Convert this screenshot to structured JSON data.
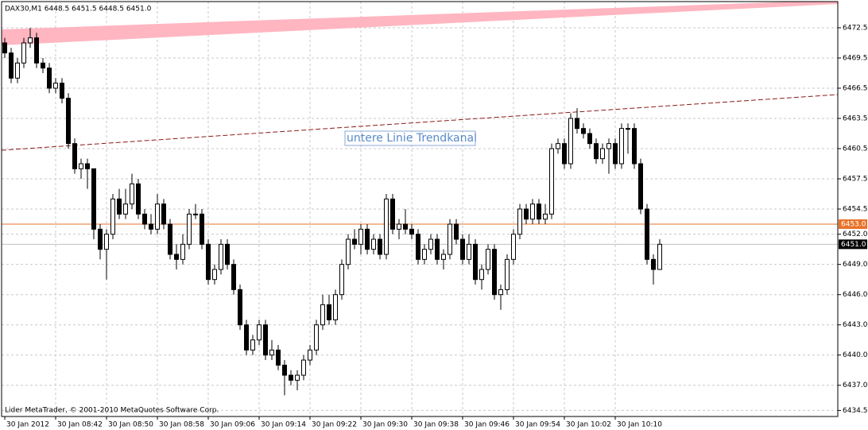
{
  "chart_data": {
    "type": "candlestick",
    "title": "DAX30,M1  6448.5 6451.5 6448.5 6451.0",
    "annotation": "untere Linie Trendkanal",
    "footer": "Lider MetaTrader, © 2001-2010 MetaQuotes Software Corp.",
    "categories": [
      "30 Jan 2012",
      null,
      null,
      null,
      null,
      null,
      null,
      null,
      "30 Jan 08:42",
      null,
      null,
      null,
      null,
      null,
      null,
      null,
      "30 Jan 08:50",
      null,
      null,
      null,
      null,
      null,
      null,
      null,
      "30 Jan 08:58",
      null,
      null,
      null,
      null,
      null,
      null,
      null,
      "30 Jan 09:06",
      null,
      null,
      null,
      null,
      null,
      null,
      null,
      "30 Jan 09:14",
      null,
      null,
      null,
      null,
      null,
      null,
      null,
      "30 Jan 09:22",
      null,
      null,
      null,
      null,
      null,
      null,
      null,
      "30 Jan 09:30",
      null,
      null,
      null,
      null,
      null,
      null,
      null,
      "30 Jan 09:38",
      null,
      null,
      null,
      null,
      null,
      null,
      null,
      "30 Jan 09:46",
      null,
      null,
      null,
      null,
      null,
      null,
      null,
      "30 Jan 09:54",
      null,
      null,
      null,
      null,
      null,
      null,
      null,
      "30 Jan 10:02",
      null,
      null,
      null,
      null,
      null,
      null,
      null,
      "30 Jan 10:10",
      null,
      null,
      null,
      null,
      null,
      null,
      null
    ],
    "open": [
      6471,
      6470,
      6467.5,
      6469,
      6471,
      6471.5,
      6469,
      6468.5,
      6466.5,
      6467,
      6465.5,
      6461,
      6458.5,
      6459,
      6458.5,
      6452.5,
      6450.5,
      6452,
      6455.5,
      6454,
      6455,
      6457,
      6454,
      6453,
      6452.5,
      6455,
      6453,
      6450,
      6449.5,
      6451,
      6454,
      6454,
      6451,
      6447.5,
      6448.5,
      6451,
      6449,
      6446.5,
      6443,
      6440.5,
      6441.5,
      6443,
      6440,
      6440.5,
      6439,
      6438,
      6437.5,
      6438,
      6439.5,
      6440.5,
      6443,
      6445,
      6443.5,
      6446,
      6449,
      6451.5,
      6451,
      6452.5,
      6450.5,
      6451.5,
      6450,
      6455.5,
      6452.5,
      6453,
      6452.5,
      6452,
      6449.5,
      6450.5,
      6451.5,
      6449.5,
      6450,
      6453,
      6451.5,
      6449.5,
      6451,
      6447.5,
      6448.5,
      6450.5,
      6446,
      6446.5,
      6449.5,
      6452,
      6454.5,
      6453.5,
      6455,
      6453.5,
      6454,
      6460.5,
      6461,
      6459,
      6463.5,
      6462.5,
      6462,
      6461,
      6459.5,
      6460.5,
      6461,
      6459,
      6462.5,
      6462.5,
      6459,
      6454.5,
      6449.5,
      6448.5
    ],
    "high": [
      6471.5,
      6470.5,
      6469.5,
      6471.5,
      6472.5,
      6472,
      6469.5,
      6469,
      6467.5,
      6467.5,
      6466,
      6461.5,
      6459.5,
      6459.5,
      6458.5,
      6453,
      6452.5,
      6456,
      6456.5,
      6456.5,
      6458,
      6457.5,
      6454.5,
      6454,
      6456,
      6455.5,
      6453.5,
      6451,
      6452,
      6454.5,
      6455,
      6454.5,
      6451.5,
      6449,
      6451.5,
      6451.5,
      6449.5,
      6447,
      6443.5,
      6442,
      6443.5,
      6443.5,
      6441.5,
      6441,
      6439.5,
      6438.5,
      6438.5,
      6440,
      6441,
      6443.5,
      6446,
      6446,
      6446.5,
      6449.5,
      6452,
      6452.5,
      6453,
      6453,
      6452,
      6452,
      6456,
      6456,
      6453.5,
      6454.5,
      6453,
      6452.5,
      6451,
      6452,
      6452,
      6450.5,
      6453.5,
      6453.5,
      6452,
      6452,
      6451.5,
      6449,
      6451,
      6451,
      6447,
      6450,
      6452.5,
      6455,
      6455,
      6455.5,
      6455.5,
      6455,
      6461,
      6461.5,
      6461.5,
      6464,
      6464.5,
      6463,
      6462.5,
      6461.5,
      6461,
      6461.5,
      6461.5,
      6463,
      6463,
      6463,
      6459.5,
      6455,
      6450,
      6451.5
    ],
    "low": [
      6469.5,
      6467,
      6467,
      6468.5,
      6470.5,
      6468.5,
      6468,
      6466,
      6466,
      6465,
      6460.5,
      6458,
      6457.5,
      6456.5,
      6451.5,
      6449.5,
      6447.5,
      6451.5,
      6453.5,
      6453.5,
      6454.5,
      6453.5,
      6452.5,
      6452,
      6452,
      6452.5,
      6449.5,
      6448.5,
      6449,
      6450.5,
      6453.5,
      6450.5,
      6447,
      6447,
      6448,
      6448.5,
      6446,
      6442.5,
      6440,
      6440,
      6441,
      6439.5,
      6439.5,
      6438.5,
      6436,
      6437,
      6436.5,
      6437.5,
      6439,
      6440,
      6442.5,
      6443,
      6443,
      6445.5,
      6448.5,
      6450.5,
      6450,
      6450,
      6450,
      6449.5,
      6449.5,
      6452,
      6451.5,
      6452,
      6451.5,
      6449,
      6449,
      6450,
      6449,
      6448.5,
      6449.5,
      6451,
      6449,
      6449,
      6447,
      6446.5,
      6448,
      6445.5,
      6444.5,
      6446,
      6449,
      6451.5,
      6453,
      6453,
      6453,
      6453,
      6453.5,
      6460,
      6458.5,
      6458.5,
      6462,
      6461.5,
      6460.5,
      6459,
      6459,
      6458,
      6458.5,
      6458.5,
      6460,
      6458.5,
      6454,
      6449,
      6447,
      6448.5
    ],
    "close": [
      6470,
      6467.5,
      6469,
      6471,
      6471.5,
      6469,
      6468.5,
      6466.5,
      6467,
      6465.5,
      6461,
      6458.5,
      6459,
      6458.5,
      6452.5,
      6450.5,
      6452,
      6455.5,
      6454,
      6455,
      6457,
      6454,
      6453,
      6452.5,
      6455,
      6453,
      6450,
      6449.5,
      6451,
      6454,
      6454,
      6451,
      6447.5,
      6448.5,
      6451,
      6449,
      6446.5,
      6443,
      6440.5,
      6441.5,
      6443,
      6440,
      6440.5,
      6439,
      6438,
      6437.5,
      6438,
      6439.5,
      6440.5,
      6443,
      6445,
      6443.5,
      6446,
      6449,
      6451.5,
      6451,
      6452.5,
      6450.5,
      6451.5,
      6450,
      6455.5,
      6452.5,
      6453,
      6452.5,
      6452,
      6449.5,
      6450.5,
      6451.5,
      6449.5,
      6450,
      6453,
      6451.5,
      6449.5,
      6451,
      6447.5,
      6448.5,
      6450.5,
      6446,
      6446.5,
      6449.5,
      6452,
      6454.5,
      6453.5,
      6455,
      6453.5,
      6454,
      6460.5,
      6461,
      6459,
      6463.5,
      6462.5,
      6462,
      6461,
      6459.5,
      6460.5,
      6461,
      6459,
      6462.5,
      6462.5,
      6459,
      6454.5,
      6449.5,
      6448.5,
      6451
    ],
    "ylim": [
      6433.9,
      6475.1
    ],
    "yticks": [
      6472.5,
      6469.5,
      6466.5,
      6463.5,
      6460.5,
      6457.5,
      6454.5,
      {
        "value": 6452,
        "label": "6452.0"
      },
      {
        "value": 6449,
        "label": "6449.0"
      },
      {
        "value": 6446,
        "label": "6446.0"
      },
      {
        "value": 6443,
        "label": "6443.0"
      },
      {
        "value": 6440,
        "label": "6440.0"
      },
      {
        "value": 6437,
        "label": "6437.0"
      },
      6434.5
    ],
    "price_lines": [
      {
        "value": 6453,
        "label": "6453.0",
        "color": "#e8732a",
        "label_bg": "#e8732a"
      },
      {
        "value": 6451,
        "label": "6451.0",
        "color": "#c0c0c0",
        "label_bg": "#000000"
      }
    ],
    "grid": true
  }
}
